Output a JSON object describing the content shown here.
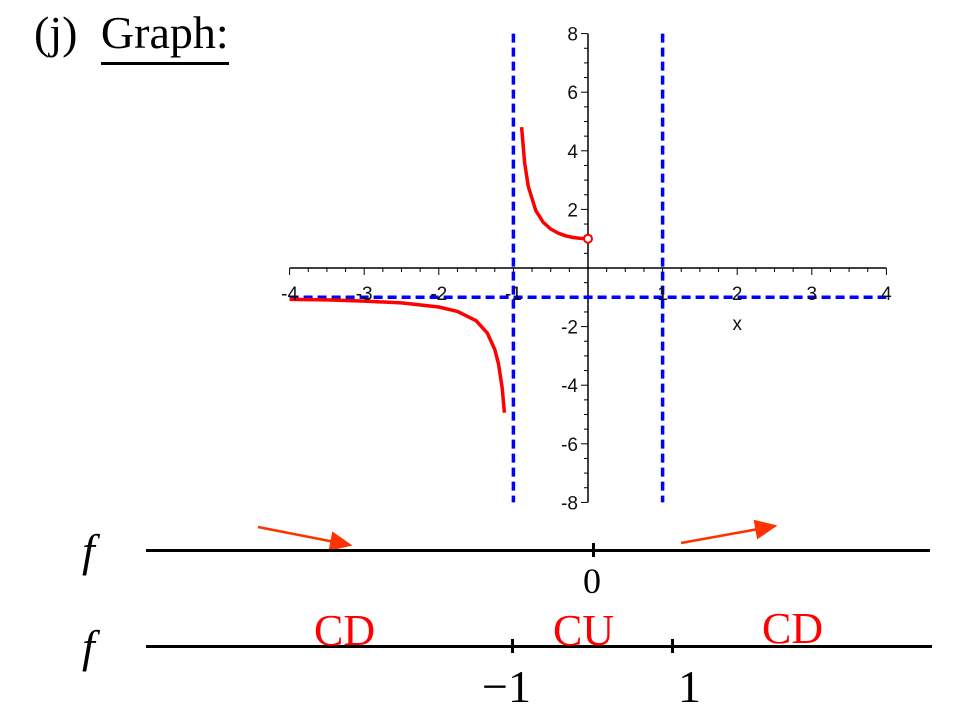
{
  "heading": {
    "part": "(j)",
    "word": "Graph:"
  },
  "chart_data": {
    "type": "line",
    "x_axis_label": "x",
    "xlim": [
      -4,
      4
    ],
    "ylim": [
      -8,
      8
    ],
    "x_ticks": [
      -4,
      -3,
      -2,
      -1,
      1,
      2,
      3,
      4
    ],
    "y_ticks": [
      -8,
      -6,
      -4,
      -2,
      2,
      4,
      6,
      8
    ],
    "asymptotes": {
      "vertical": [
        -1,
        1
      ],
      "horizontal": [
        -1
      ]
    },
    "series": [
      {
        "x": [
          -4,
          -3.5,
          -3,
          -2.5,
          -2,
          -1.75,
          -1.5,
          -1.35,
          -1.25,
          -1.2,
          -1.15,
          -1.12
        ],
        "y": [
          -1.07,
          -1.09,
          -1.13,
          -1.19,
          -1.33,
          -1.48,
          -1.8,
          -2.22,
          -2.78,
          -3.27,
          -4.1,
          -4.94
        ]
      },
      {
        "x": [
          -0.89,
          -0.85,
          -0.8,
          -0.7,
          -0.6,
          -0.5,
          -0.4,
          -0.3,
          -0.2,
          -0.1,
          0
        ],
        "y": [
          4.81,
          3.6,
          2.78,
          1.96,
          1.56,
          1.33,
          1.19,
          1.1,
          1.04,
          1.01,
          1.0
        ]
      }
    ],
    "colors": {
      "curve": "#ff0000",
      "asymptote": "#0000ff",
      "axis": "#000000"
    }
  },
  "sign_chart": {
    "row1": {
      "label": "f",
      "tick_label": "0",
      "arrow_color": "#ff3300"
    },
    "row2": {
      "label": "f",
      "critical_labels": [
        "−1",
        "1"
      ],
      "intervals": [
        "CD",
        "CU",
        "CD"
      ]
    }
  }
}
